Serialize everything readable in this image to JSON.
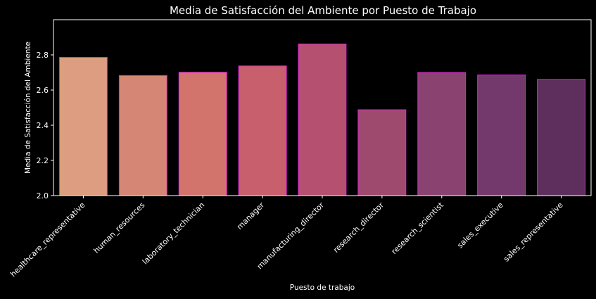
{
  "colors": {
    "background": "#000000",
    "bar_edge": "#e020e0",
    "text": "#ffffff",
    "bar_palette": [
      "#dd9d81",
      "#d68674",
      "#d2746c",
      "#c85f6c",
      "#b55070",
      "#9e4a6f",
      "#8a4371",
      "#73396c",
      "#5e2f5c"
    ]
  },
  "chart_data": {
    "type": "bar",
    "title": "Media de Satisfacción del Ambiente por Puesto de Trabajo",
    "xlabel": "Puesto de trabajo",
    "ylabel": "Media de Satisfacción del Ambiente",
    "categories": [
      "healthcare_representative",
      "human_resources",
      "laboratory_technician",
      "manager",
      "manufacturing_director",
      "research_director",
      "research_scientist",
      "sales_executive",
      "sales_representative"
    ],
    "values": [
      2.786,
      2.683,
      2.701,
      2.737,
      2.862,
      2.488,
      2.7,
      2.686,
      2.661
    ],
    "ylim": [
      2.0,
      3.0
    ],
    "yticks": [
      2.0,
      2.2,
      2.4,
      2.6,
      2.8
    ],
    "ytick_labels": [
      "2.0",
      "2.2",
      "2.4",
      "2.6",
      "2.8"
    ],
    "grid": false,
    "legend": "none"
  }
}
